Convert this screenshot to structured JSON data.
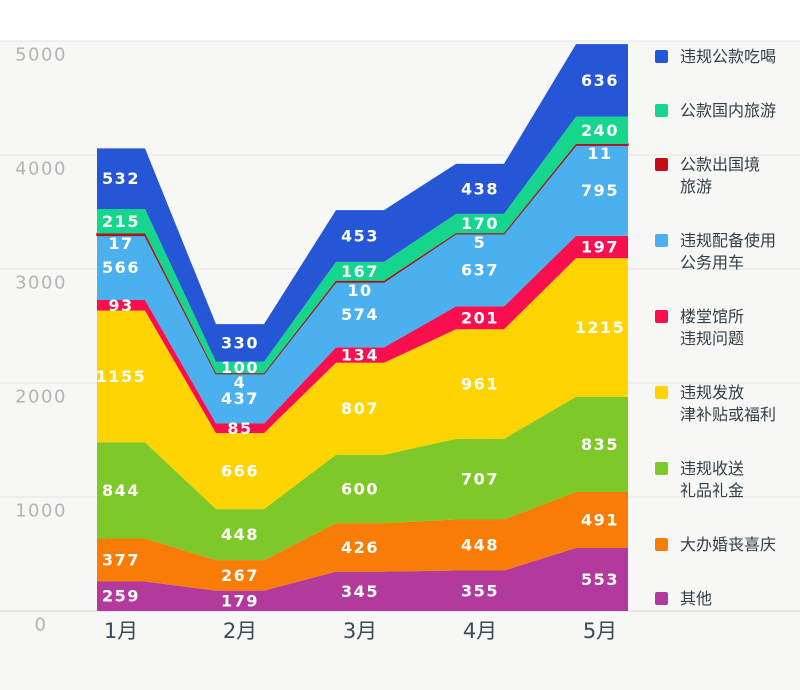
{
  "chart_data": {
    "type": "area",
    "stacked": true,
    "title": "",
    "categories": [
      "1月",
      "2月",
      "3月",
      "4月",
      "5月"
    ],
    "y_ticks": [
      0,
      1000,
      2000,
      3000,
      4000,
      5000
    ],
    "ylim": [
      0,
      5000
    ],
    "grid": true,
    "legend_position": "right",
    "series": [
      {
        "name": "其他",
        "color": "#b23a9c",
        "values": [
          259,
          179,
          345,
          355,
          553
        ]
      },
      {
        "name": "大办婚丧喜庆",
        "color": "#f97c06",
        "values": [
          377,
          267,
          426,
          448,
          491
        ]
      },
      {
        "name": "违规收送礼品礼金",
        "color": "#7fc82a",
        "values": [
          844,
          448,
          600,
          707,
          835
        ]
      },
      {
        "name": "违规发放津补贴或福利",
        "color": "#ffd400",
        "values": [
          1155,
          666,
          807,
          961,
          1215
        ]
      },
      {
        "name": "楼堂馆所违规问题",
        "color": "#f90f4e",
        "values": [
          93,
          85,
          134,
          201,
          197
        ]
      },
      {
        "name": "违规配备使用公务用车",
        "color": "#4bb0ee",
        "values": [
          566,
          437,
          574,
          637,
          795
        ]
      },
      {
        "name": "公款出国境旅游",
        "color": "#b5101b",
        "values": [
          17,
          4,
          10,
          5,
          11
        ],
        "thin_outline": true
      },
      {
        "name": "公款国内旅游",
        "color": "#16d58d",
        "values": [
          215,
          100,
          167,
          170,
          240
        ]
      },
      {
        "name": "违规公款吃喝",
        "color": "#2456d6",
        "values": [
          532,
          330,
          453,
          438,
          636
        ]
      }
    ],
    "legend": [
      {
        "lines": [
          "违规公款吃喝"
        ],
        "color": "#2456d6"
      },
      {
        "lines": [
          "公款国内旅游"
        ],
        "color": "#16d58d"
      },
      {
        "lines": [
          "公款出国境",
          "旅游"
        ],
        "color": "#c20d18"
      },
      {
        "lines": [
          "违规配备使用",
          "公务用车"
        ],
        "color": "#4bb0ee"
      },
      {
        "lines": [
          "楼堂馆所",
          "违规问题"
        ],
        "color": "#f90f4e"
      },
      {
        "lines": [
          "违规发放",
          "津补贴或福利"
        ],
        "color": "#ffd400"
      },
      {
        "lines": [
          "违规收送",
          "礼品礼金"
        ],
        "color": "#7fc82a"
      },
      {
        "lines": [
          "大办婚丧喜庆"
        ],
        "color": "#f97c06"
      },
      {
        "lines": [
          "其他"
        ],
        "color": "#b23a9c"
      }
    ],
    "colors": {
      "background": "#f7f7f5",
      "top_band": "#ffffff",
      "gridline": "#e3e3e1",
      "baseline": "#d6d6d4",
      "y_tick_label": "#b4b4b4",
      "x_tick_label": "#3c4b54",
      "value_label": "#ffffff"
    }
  }
}
